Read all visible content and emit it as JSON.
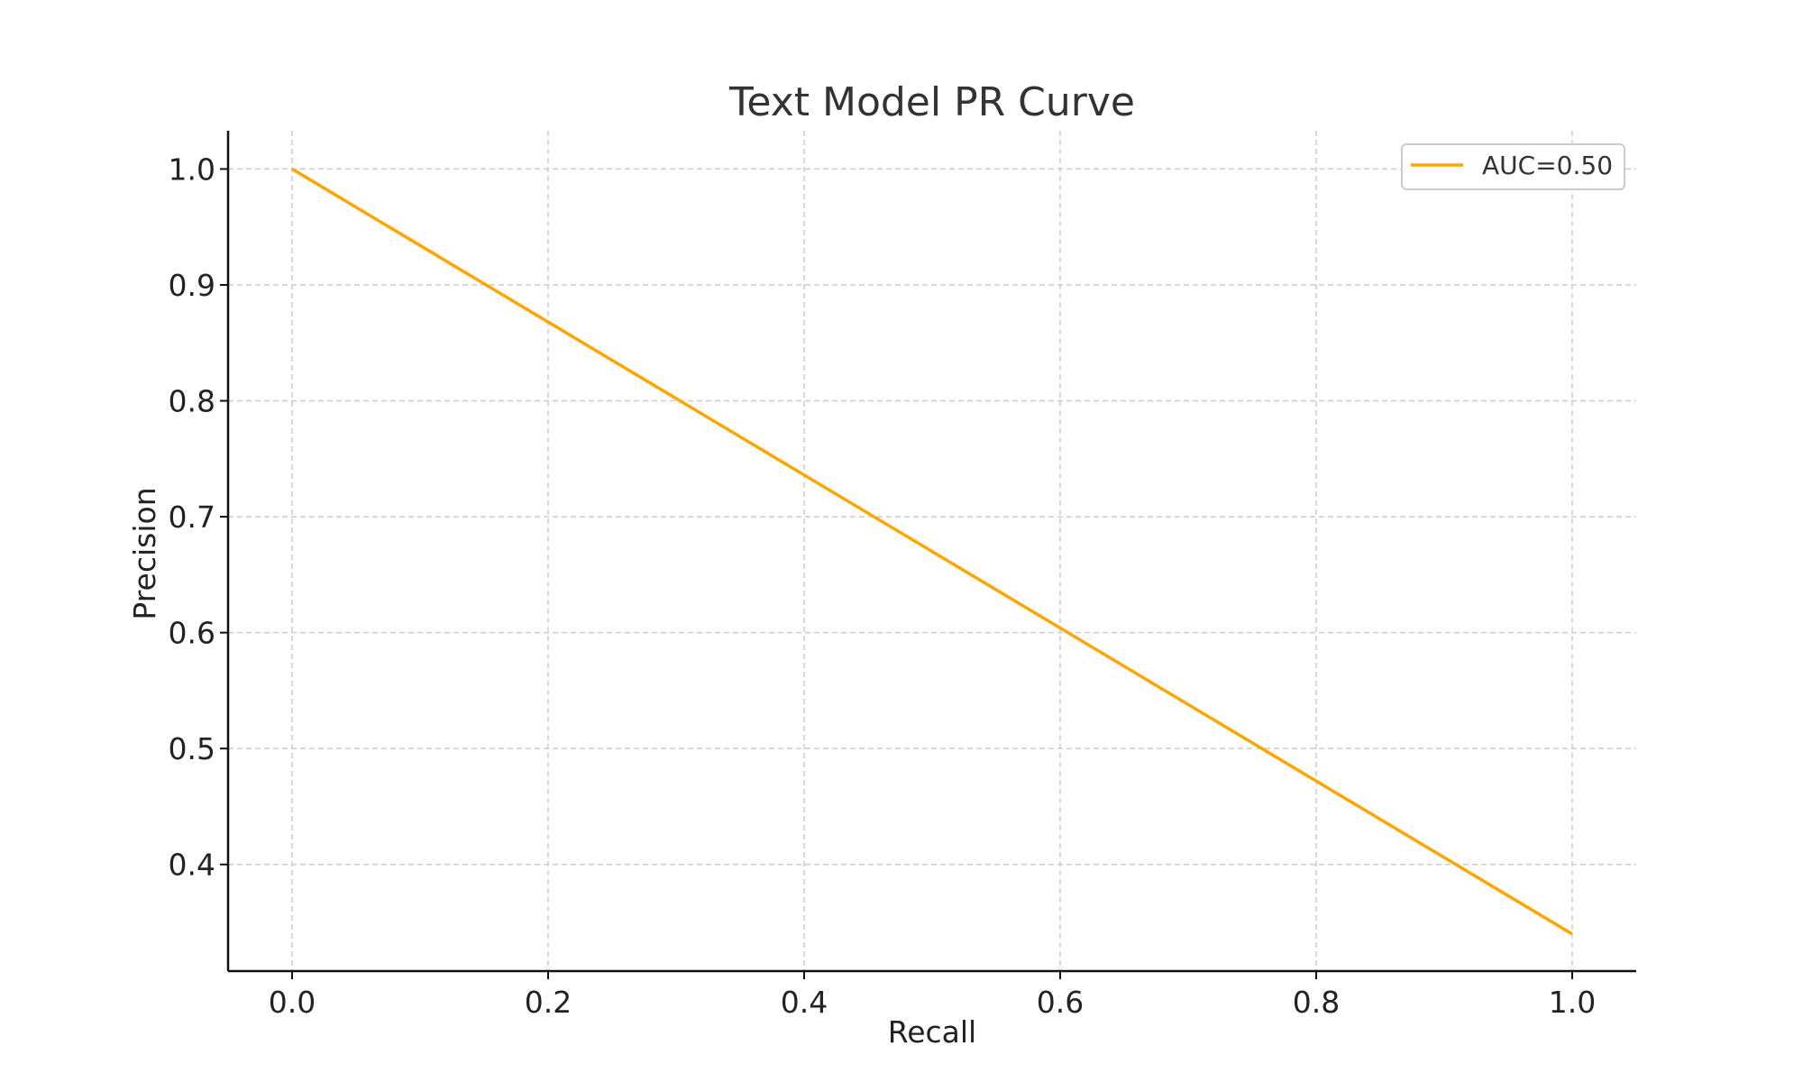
{
  "chart_data": {
    "type": "line",
    "title": "Text Model PR Curve",
    "xlabel": "Recall",
    "ylabel": "Precision",
    "xlim": [
      -0.05,
      1.05
    ],
    "ylim": [
      0.308,
      1.033
    ],
    "xticks": [
      0.0,
      0.2,
      0.4,
      0.6,
      0.8,
      1.0
    ],
    "xtick_labels": [
      "0.0",
      "0.2",
      "0.4",
      "0.6",
      "0.8",
      "1.0"
    ],
    "yticks": [
      0.4,
      0.5,
      0.6,
      0.7,
      0.8,
      0.9,
      1.0
    ],
    "ytick_labels": [
      "0.4",
      "0.5",
      "0.6",
      "0.7",
      "0.8",
      "0.9",
      "1.0"
    ],
    "grid": true,
    "legend_position": "top-right",
    "series": [
      {
        "name": "AUC=0.50",
        "color": "#FFA500",
        "x": [
          0.0,
          1.0
        ],
        "y": [
          1.0,
          0.34
        ]
      }
    ]
  }
}
